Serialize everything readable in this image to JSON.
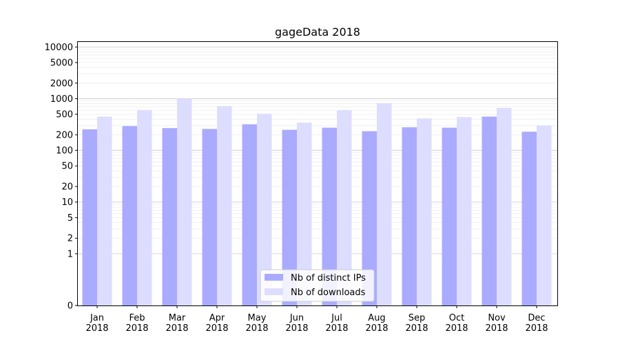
{
  "chart_data": {
    "type": "bar",
    "title": "gageData 2018",
    "xlabel": "",
    "ylabel": "",
    "y_scale": "symlog",
    "ylim": [
      0,
      12500
    ],
    "categories": [
      [
        "Jan",
        "2018"
      ],
      [
        "Feb",
        "2018"
      ],
      [
        "Mar",
        "2018"
      ],
      [
        "Apr",
        "2018"
      ],
      [
        "May",
        "2018"
      ],
      [
        "Jun",
        "2018"
      ],
      [
        "Jul",
        "2018"
      ],
      [
        "Aug",
        "2018"
      ],
      [
        "Sep",
        "2018"
      ],
      [
        "Oct",
        "2018"
      ],
      [
        "Nov",
        "2018"
      ],
      [
        "Dec",
        "2018"
      ]
    ],
    "y_ticks": [
      0,
      1,
      2,
      5,
      10,
      20,
      50,
      100,
      200,
      500,
      1000,
      2000,
      5000,
      10000
    ],
    "y_tick_labels": [
      "0",
      "1",
      "2",
      "5",
      "10",
      "20",
      "50",
      "100",
      "200",
      "500",
      "1000",
      "2000",
      "5000",
      "10000"
    ],
    "grid": true,
    "legend_position": "bottom-center",
    "series": [
      {
        "name": "Nb of distinct IPs",
        "color": "#aaaaff",
        "values": [
          255,
          295,
          270,
          260,
          320,
          250,
          275,
          235,
          280,
          275,
          450,
          230
        ]
      },
      {
        "name": "Nb of downloads",
        "color": "#ddddff",
        "values": [
          450,
          600,
          1000,
          720,
          510,
          345,
          600,
          820,
          415,
          440,
          660,
          305
        ]
      }
    ]
  }
}
